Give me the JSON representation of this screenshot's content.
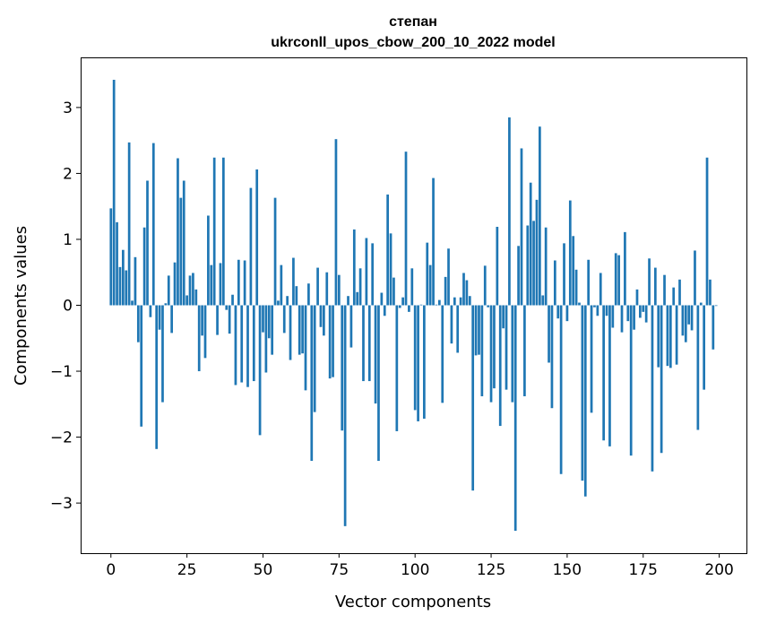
{
  "chart_data": {
    "type": "bar",
    "title": "степан",
    "subtitle": "ukrconll_upos_cbow_200_10_2022 model",
    "xlabel": "Vector components",
    "ylabel": "Components values",
    "xlim": [
      -9.95,
      208.95
    ],
    "ylim": [
      -3.76,
      3.76
    ],
    "xticks": [
      0,
      25,
      50,
      75,
      100,
      125,
      150,
      175,
      200
    ],
    "yticks": [
      -3,
      -2,
      -1,
      0,
      1,
      2,
      3
    ],
    "ytick_labels": [
      "−3",
      "−2",
      "−1",
      "0",
      "1",
      "2",
      "3"
    ],
    "grid": false,
    "bar_color": "#1f77b4",
    "values": [
      1.47,
      3.42,
      1.26,
      0.58,
      0.84,
      0.53,
      2.47,
      0.07,
      0.73,
      -0.56,
      -1.84,
      1.18,
      1.89,
      -0.18,
      2.46,
      -2.18,
      -0.37,
      -1.47,
      0.03,
      0.45,
      -0.42,
      0.65,
      2.23,
      1.63,
      1.89,
      0.15,
      0.45,
      0.49,
      0.24,
      -1.0,
      -0.46,
      -0.8,
      1.36,
      0.61,
      2.24,
      -0.45,
      0.64,
      2.24,
      -0.07,
      -0.43,
      0.16,
      -1.21,
      0.69,
      -1.17,
      0.68,
      -1.24,
      1.78,
      -1.15,
      2.06,
      -1.97,
      -0.41,
      -1.02,
      -0.5,
      -0.75,
      1.63,
      0.07,
      0.61,
      -0.42,
      0.14,
      -0.83,
      0.72,
      0.29,
      -0.75,
      -0.73,
      -1.29,
      0.33,
      -2.36,
      -1.62,
      0.57,
      -0.33,
      -0.46,
      0.5,
      -1.11,
      -1.09,
      2.52,
      0.46,
      -1.9,
      -3.35,
      0.14,
      -0.64,
      1.15,
      0.2,
      0.56,
      -1.15,
      1.02,
      -1.15,
      0.94,
      -1.49,
      -2.36,
      0.19,
      -0.16,
      1.68,
      1.09,
      0.42,
      -1.91,
      -0.04,
      0.12,
      2.33,
      -0.1,
      0.56,
      -1.59,
      -1.76,
      0.01,
      -1.72,
      0.95,
      0.61,
      1.93,
      0.01,
      0.08,
      -1.48,
      0.43,
      0.86,
      -0.58,
      0.12,
      -0.72,
      0.12,
      0.49,
      0.38,
      0.14,
      -2.81,
      -0.76,
      -0.75,
      -1.38,
      0.6,
      -0.03,
      -1.47,
      -1.26,
      1.19,
      -1.83,
      -0.35,
      -1.28,
      2.85,
      -1.47,
      -3.42,
      0.9,
      2.38,
      -1.38,
      1.21,
      1.86,
      1.28,
      1.6,
      2.71,
      0.15,
      1.18,
      -0.87,
      -1.56,
      0.68,
      -0.2,
      -2.56,
      0.94,
      -0.24,
      1.59,
      1.05,
      0.54,
      0.04,
      -2.66,
      -2.9,
      0.69,
      -1.63,
      -0.03,
      -0.16,
      0.49,
      -2.05,
      -0.16,
      -2.14,
      -0.34,
      0.79,
      0.76,
      -0.41,
      1.11,
      -0.24,
      -2.28,
      -0.37,
      0.24,
      -0.19,
      -0.1,
      -0.26,
      0.71,
      -2.52,
      0.57,
      -0.94,
      -2.24,
      0.46,
      -0.92,
      -0.95,
      0.27,
      -0.9,
      0.39,
      -0.46,
      -0.56,
      -0.29,
      -0.38,
      0.83,
      -1.89,
      0.04,
      -1.28,
      2.24,
      0.39,
      -0.67,
      -0.01
    ]
  }
}
